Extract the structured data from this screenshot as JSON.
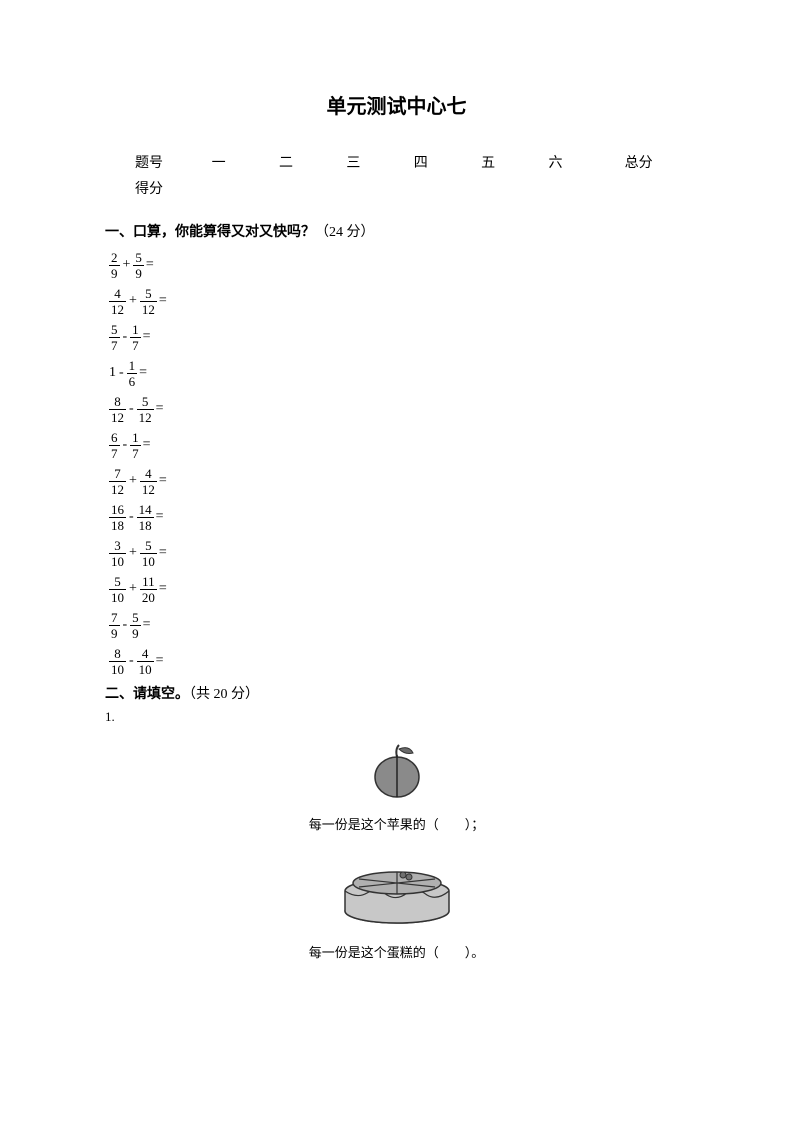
{
  "title": "单元测试中心七",
  "score_table": {
    "row1_label": "题号",
    "cols": [
      "一",
      "二",
      "三",
      "四",
      "五",
      "六",
      "总分"
    ],
    "row2_label": "得分"
  },
  "section1": {
    "label": "一、",
    "bold_text": "口算，你能算得又对又快吗？",
    "points": "（24 分）",
    "problems": [
      {
        "a_num": "2",
        "a_den": "9",
        "op": "+",
        "b_num": "5",
        "b_den": "9",
        "whole_a": null
      },
      {
        "a_num": "4",
        "a_den": "12",
        "op": "+",
        "b_num": "5",
        "b_den": "12",
        "whole_a": null
      },
      {
        "a_num": "5",
        "a_den": "7",
        "op": "-",
        "b_num": "1",
        "b_den": "7",
        "whole_a": null
      },
      {
        "a_num": "1",
        "a_den": "6",
        "op": "-",
        "b_num": null,
        "b_den": null,
        "whole_a": "1"
      },
      {
        "a_num": "8",
        "a_den": "12",
        "op": "-",
        "b_num": "5",
        "b_den": "12",
        "whole_a": null
      },
      {
        "a_num": "6",
        "a_den": "7",
        "op": "-",
        "b_num": "1",
        "b_den": "7",
        "whole_a": null
      },
      {
        "a_num": "7",
        "a_den": "12",
        "op": "+",
        "b_num": "4",
        "b_den": "12",
        "whole_a": null
      },
      {
        "a_num": "16",
        "a_den": "18",
        "op": "-",
        "b_num": "14",
        "b_den": "18",
        "whole_a": null
      },
      {
        "a_num": "3",
        "a_den": "10",
        "op": "+",
        "b_num": "5",
        "b_den": "10",
        "whole_a": null
      },
      {
        "a_num": "5",
        "a_den": "10",
        "op": "+",
        "b_num": "11",
        "b_den": "20",
        "whole_a": null
      },
      {
        "a_num": "7",
        "a_den": "9",
        "op": "-",
        "b_num": "5",
        "b_den": "9",
        "whole_a": null
      },
      {
        "a_num": "8",
        "a_den": "10",
        "op": "-",
        "b_num": "4",
        "b_den": "10",
        "whole_a": null
      }
    ]
  },
  "section2": {
    "label": "二、",
    "bold_text": "请填空。",
    "points": "（共 20 分）",
    "item1_num": "1.",
    "apple_caption": "每一份是这个苹果的（　　）；",
    "cake_caption": "每一份是这个蛋糕的（　　）。"
  },
  "colors": {
    "text": "#000000",
    "bg": "#ffffff",
    "icon_fill": "#808080",
    "icon_dark": "#4a4a4a",
    "icon_light": "#d0d0d0"
  }
}
